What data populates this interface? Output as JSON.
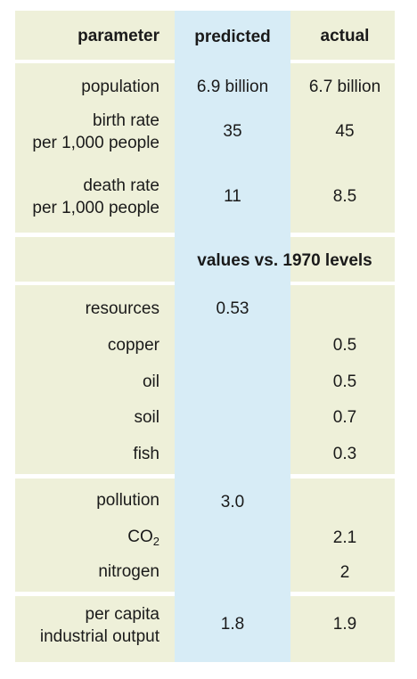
{
  "colors": {
    "band": "#eef0d9",
    "predicted_column": "#d7ecf6"
  },
  "header": {
    "parameter": "parameter",
    "predicted": "predicted",
    "actual": "actual"
  },
  "population": {
    "label": "population",
    "predicted": "6.9 billion",
    "actual": "6.7 billion"
  },
  "birth_rate": {
    "label_line1": "birth rate",
    "label_line2": "per 1,000 people",
    "predicted": "35",
    "actual": "45"
  },
  "death_rate": {
    "label_line1": "death rate",
    "label_line2": "per 1,000 people",
    "predicted": "11",
    "actual": "8.5"
  },
  "section_header": "values vs. 1970 levels",
  "resources": {
    "label": "resources",
    "predicted": "0.53"
  },
  "copper": {
    "label": "copper",
    "actual": "0.5"
  },
  "oil": {
    "label": "oil",
    "actual": "0.5"
  },
  "soil": {
    "label": "soil",
    "actual": "0.7"
  },
  "fish": {
    "label": "fish",
    "actual": "0.3"
  },
  "pollution": {
    "label": "pollution",
    "predicted": "3.0"
  },
  "co2": {
    "label_main": "CO",
    "label_sub": "2",
    "actual": "2.1"
  },
  "nitrogen": {
    "label": "nitrogen",
    "actual": "2"
  },
  "industrial_output": {
    "label_line1": "per capita",
    "label_line2": "industrial output",
    "predicted": "1.8",
    "actual": "1.9"
  }
}
